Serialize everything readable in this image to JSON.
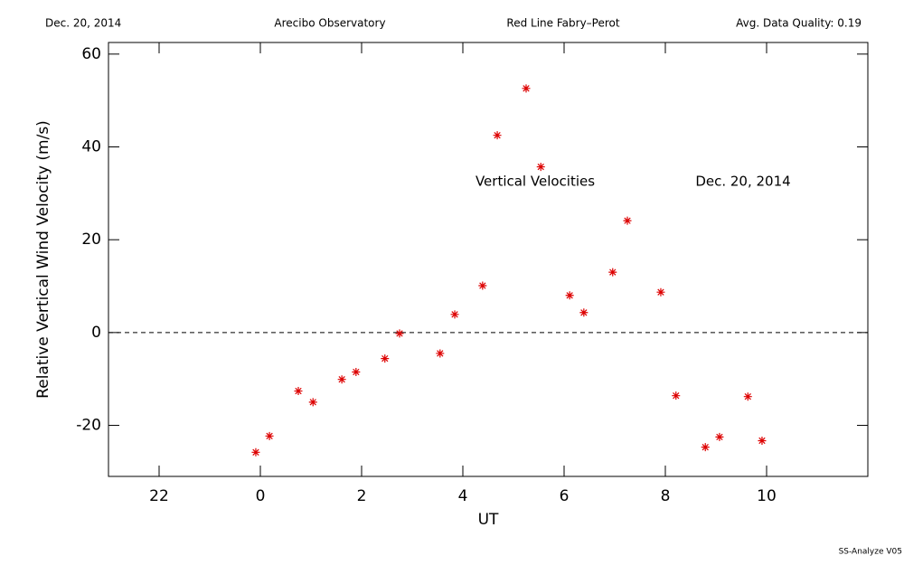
{
  "chart_data": {
    "type": "scatter",
    "header": [
      "Dec. 20, 2014",
      "Arecibo Observatory",
      "Red Line Fabry–Perot",
      "Avg. Data Quality: 0.19"
    ],
    "xlabel": "UT",
    "ylabel": "Relative Vertical Wind Velocity (m/s)",
    "annotations": [
      "Vertical Velocities",
      "Dec. 20, 2014"
    ],
    "footer": "SS-Analyze V05",
    "color": "#dd0000",
    "marker": "asterisk",
    "x": [
      -0.09,
      0.18,
      0.75,
      1.04,
      1.61,
      1.89,
      2.46,
      2.75,
      3.55,
      3.84,
      4.39,
      4.68,
      5.25,
      5.54,
      6.11,
      6.39,
      6.96,
      7.25,
      7.91,
      8.21,
      8.79,
      9.07,
      9.63,
      9.91
    ],
    "values": [
      -25.8,
      -22.3,
      -12.6,
      -15.0,
      -10.1,
      -8.5,
      -5.6,
      -0.2,
      -4.5,
      3.9,
      10.1,
      42.5,
      52.6,
      35.7,
      8.0,
      4.3,
      13.0,
      24.1,
      8.7,
      -13.6,
      -24.7,
      -22.5,
      -13.8,
      -23.3
    ],
    "xlim": [
      -3,
      12
    ],
    "ylim": [
      -31,
      62.5
    ],
    "xticks": [
      {
        "value": -2,
        "label": "22"
      },
      0,
      2,
      4,
      6,
      8,
      10
    ],
    "yticks": [
      -20,
      0,
      20,
      40,
      60
    ],
    "reference_line": 0
  }
}
